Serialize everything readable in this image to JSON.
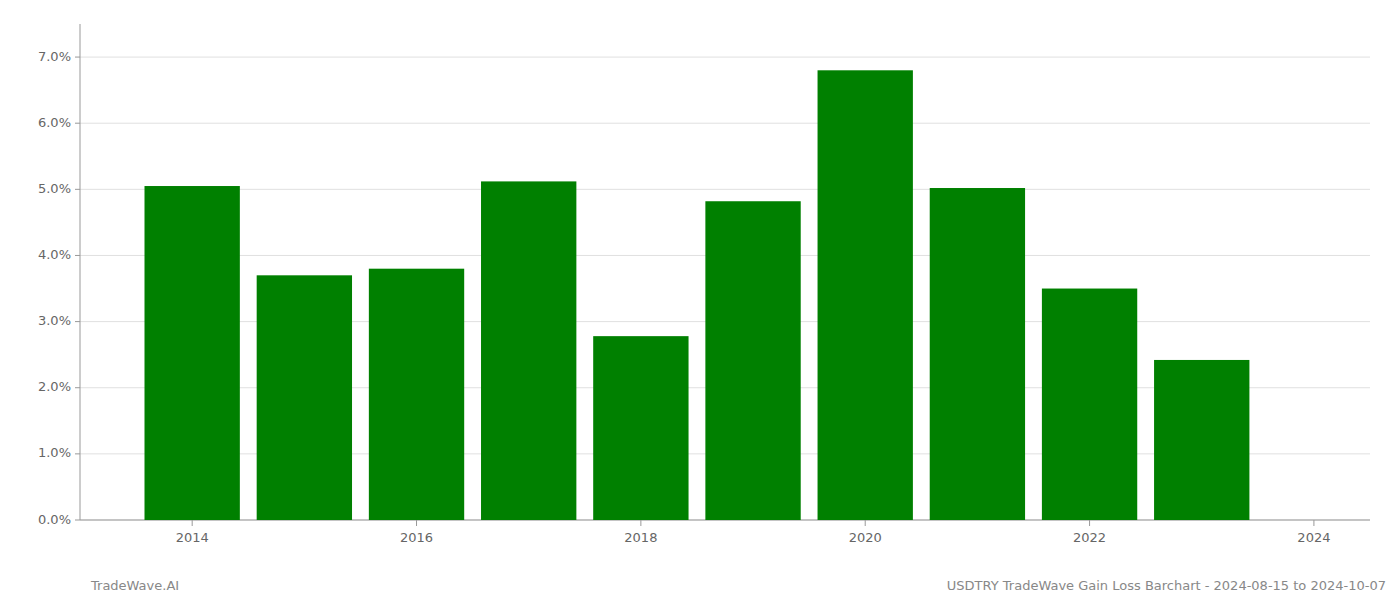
{
  "chart_data": {
    "type": "bar",
    "x": [
      2014,
      2015,
      2016,
      2017,
      2018,
      2019,
      2020,
      2021,
      2022,
      2023
    ],
    "values": [
      0.0505,
      0.037,
      0.038,
      0.0512,
      0.0278,
      0.0482,
      0.068,
      0.0502,
      0.035,
      0.0242
    ],
    "color": "#008000",
    "xlim": [
      2013.0,
      2024.5
    ],
    "xticks": [
      2014,
      2016,
      2018,
      2020,
      2022,
      2024
    ],
    "ylim": [
      0.0,
      0.075
    ],
    "yticks": [
      {
        "value": 0.0,
        "label": "0.0%"
      },
      {
        "value": 0.01,
        "label": "1.0%"
      },
      {
        "value": 0.02,
        "label": "2.0%"
      },
      {
        "value": 0.03,
        "label": "3.0%"
      },
      {
        "value": 0.04,
        "label": "4.0%"
      },
      {
        "value": 0.05,
        "label": "5.0%"
      },
      {
        "value": 0.06,
        "label": "6.0%"
      },
      {
        "value": 0.07,
        "label": "7.0%"
      }
    ],
    "grid": true,
    "annotations": [
      "TradeWave.AI",
      "USDTRY TradeWave Gain Loss Barchart - 2024-08-15 to 2024-10-07"
    ]
  }
}
